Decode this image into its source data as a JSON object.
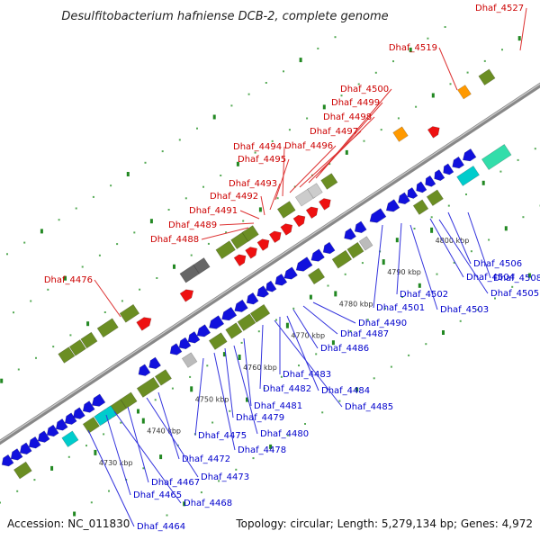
{
  "title": "Desulfitobacterium hafniense DCB-2, complete genome",
  "accession": "Accession: NC_011830",
  "topology": "Topology: circular; Length: 5,279,134 bp; Genes: 4,972",
  "colors": {
    "forward_gene": "#ee1111",
    "reverse_gene": "#1111dd",
    "forward_label": "#cc0000",
    "reverse_label": "#0000cc",
    "backbone": "#888888",
    "olive": "#6b8e23",
    "cyan": "#00cccc",
    "teal": "#33ddaa",
    "orange": "#ff9900",
    "gray": "#bbbbbb",
    "green_tick": "#228822"
  },
  "scale_ticks": [
    "4730 kbp",
    "4740 kbp",
    "4750 kbp",
    "4760 kbp",
    "4770 kbp",
    "4780 kbp",
    "4790 kbp",
    "4800 kbp"
  ],
  "forward_labels": [
    "Dhaf_4527",
    "Dhaf_4519",
    "Dhaf_4500",
    "Dhaf_4499",
    "Dhaf_4498",
    "Dhaf_4497",
    "Dhaf_4496",
    "Dhaf_4494",
    "Dhaf_4495",
    "Dhaf_4493",
    "Dhaf_4492",
    "Dhaf_4491",
    "Dhaf_4489",
    "Dhaf_4488",
    "Dhaf_4476"
  ],
  "reverse_labels": [
    "Dhaf_4506",
    "Dhaf_4508",
    "Dhaf_4504",
    "Dhaf_4505",
    "Dhaf_4502",
    "Dhaf_4503",
    "Dhaf_4501",
    "Dhaf_4490",
    "Dhaf_4487",
    "Dhaf_4486",
    "Dhaf_4483",
    "Dhaf_4484",
    "Dhaf_4482",
    "Dhaf_4485",
    "Dhaf_4481",
    "Dhaf_4479",
    "Dhaf_4480",
    "Dhaf_4475",
    "Dhaf_4478",
    "Dhaf_4472",
    "Dhaf_4473",
    "Dhaf_4467",
    "Dhaf_4465",
    "Dhaf_4468",
    "Dhaf_4464"
  ]
}
